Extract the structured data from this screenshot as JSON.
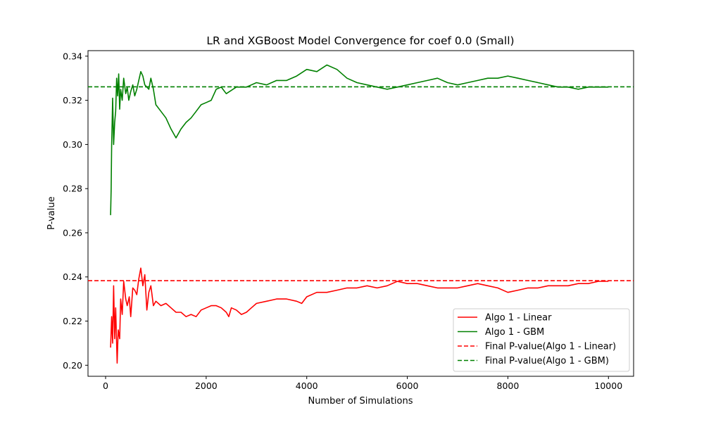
{
  "chart_data": {
    "type": "line",
    "title": "LR and XGBoost Model Convergence for coef 0.0 (Small)",
    "xlabel": "Number of Simulations",
    "ylabel": "P-value",
    "xlim": [
      -350,
      10500
    ],
    "ylim": [
      0.195,
      0.3425
    ],
    "xticks": [
      0,
      2000,
      4000,
      6000,
      8000,
      10000
    ],
    "yticks": [
      0.2,
      0.22,
      0.24,
      0.26,
      0.28,
      0.3,
      0.32,
      0.34
    ],
    "ytick_labels": [
      "0.20",
      "0.22",
      "0.24",
      "0.26",
      "0.28",
      "0.30",
      "0.32",
      "0.34"
    ],
    "grid": false,
    "legend_position": "lower-right",
    "series": [
      {
        "name": "Algo 1 - Linear",
        "color": "#ff0000",
        "style": "solid",
        "x": [
          100,
          120,
          140,
          160,
          180,
          200,
          230,
          250,
          280,
          300,
          330,
          360,
          400,
          430,
          470,
          500,
          540,
          580,
          620,
          660,
          700,
          740,
          780,
          820,
          860,
          900,
          950,
          1000,
          1100,
          1200,
          1300,
          1400,
          1500,
          1600,
          1700,
          1800,
          1900,
          2000,
          2100,
          2200,
          2300,
          2400,
          2450,
          2500,
          2600,
          2700,
          2800,
          2900,
          3000,
          3200,
          3400,
          3600,
          3800,
          3900,
          4000,
          4200,
          4400,
          4600,
          4800,
          5000,
          5200,
          5400,
          5600,
          5800,
          6000,
          6200,
          6400,
          6600,
          6800,
          7000,
          7200,
          7400,
          7600,
          7800,
          8000,
          8200,
          8400,
          8600,
          8800,
          9000,
          9200,
          9400,
          9600,
          9800,
          10000
        ],
        "values": [
          0.208,
          0.222,
          0.21,
          0.236,
          0.212,
          0.226,
          0.201,
          0.216,
          0.212,
          0.23,
          0.223,
          0.238,
          0.23,
          0.227,
          0.231,
          0.222,
          0.235,
          0.234,
          0.232,
          0.239,
          0.244,
          0.236,
          0.241,
          0.225,
          0.233,
          0.236,
          0.227,
          0.229,
          0.227,
          0.228,
          0.226,
          0.224,
          0.224,
          0.222,
          0.223,
          0.222,
          0.225,
          0.226,
          0.227,
          0.227,
          0.226,
          0.224,
          0.222,
          0.226,
          0.225,
          0.223,
          0.224,
          0.226,
          0.228,
          0.229,
          0.23,
          0.23,
          0.229,
          0.228,
          0.231,
          0.233,
          0.233,
          0.234,
          0.235,
          0.235,
          0.236,
          0.235,
          0.236,
          0.238,
          0.237,
          0.237,
          0.236,
          0.235,
          0.235,
          0.235,
          0.236,
          0.237,
          0.236,
          0.235,
          0.233,
          0.234,
          0.235,
          0.235,
          0.236,
          0.236,
          0.236,
          0.237,
          0.237,
          0.238,
          0.238
        ]
      },
      {
        "name": "Algo 1 - GBM",
        "color": "#008000",
        "style": "solid",
        "x": [
          100,
          110,
          120,
          130,
          140,
          160,
          180,
          200,
          220,
          240,
          260,
          280,
          300,
          330,
          360,
          400,
          430,
          460,
          500,
          540,
          580,
          620,
          660,
          700,
          740,
          780,
          820,
          860,
          900,
          950,
          1000,
          1100,
          1200,
          1300,
          1400,
          1500,
          1600,
          1700,
          1800,
          1900,
          2000,
          2100,
          2200,
          2300,
          2400,
          2600,
          2800,
          3000,
          3200,
          3400,
          3600,
          3800,
          4000,
          4200,
          4400,
          4600,
          4800,
          5000,
          5200,
          5400,
          5600,
          5800,
          6000,
          6200,
          6400,
          6600,
          6800,
          7000,
          7200,
          7400,
          7600,
          7800,
          8000,
          8200,
          8400,
          8600,
          8800,
          9000,
          9200,
          9400,
          9600,
          9800,
          10000
        ],
        "values": [
          0.268,
          0.28,
          0.3,
          0.31,
          0.321,
          0.3,
          0.31,
          0.315,
          0.33,
          0.322,
          0.332,
          0.316,
          0.325,
          0.32,
          0.33,
          0.323,
          0.326,
          0.32,
          0.324,
          0.327,
          0.322,
          0.325,
          0.329,
          0.333,
          0.331,
          0.327,
          0.326,
          0.325,
          0.33,
          0.325,
          0.318,
          0.315,
          0.312,
          0.307,
          0.303,
          0.307,
          0.31,
          0.312,
          0.315,
          0.318,
          0.319,
          0.32,
          0.325,
          0.326,
          0.323,
          0.326,
          0.326,
          0.328,
          0.327,
          0.329,
          0.329,
          0.331,
          0.334,
          0.333,
          0.336,
          0.334,
          0.33,
          0.328,
          0.327,
          0.326,
          0.325,
          0.326,
          0.327,
          0.328,
          0.329,
          0.33,
          0.328,
          0.327,
          0.328,
          0.329,
          0.33,
          0.33,
          0.331,
          0.33,
          0.329,
          0.328,
          0.327,
          0.326,
          0.326,
          0.325,
          0.326,
          0.326,
          0.326
        ]
      },
      {
        "name": "Final P-value(Algo 1 - Linear)",
        "color": "#ff0000",
        "style": "dashed",
        "hline": 0.2383
      },
      {
        "name": "Final P-value(Algo 1 - GBM)",
        "color": "#008000",
        "style": "dashed",
        "hline": 0.3261
      }
    ]
  }
}
